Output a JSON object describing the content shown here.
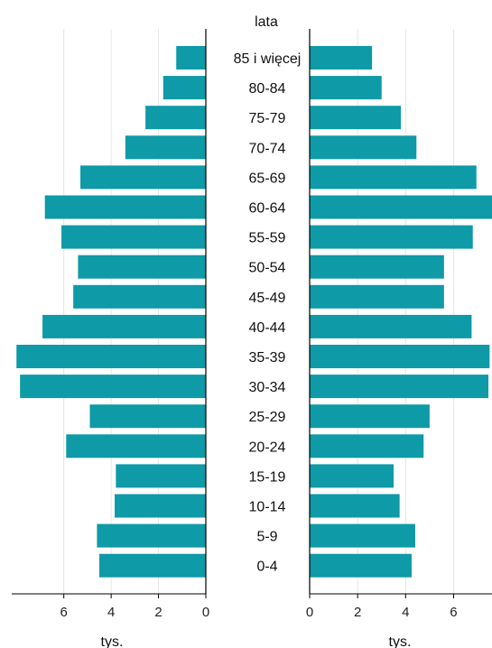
{
  "chart_data": {
    "type": "bar",
    "orientation": "horizontal",
    "layout": "population-pyramid",
    "y_axis_title": "lata",
    "categories": [
      "85 i więcej",
      "80-84",
      "75-79",
      "70-74",
      "65-69",
      "60-64",
      "55-59",
      "50-54",
      "45-49",
      "40-44",
      "35-39",
      "30-34",
      "25-29",
      "20-24",
      "15-19",
      "10-14",
      "5-9",
      "0-4"
    ],
    "colors": {
      "bar": "#0e9aa7",
      "grid": "#e6e6e6",
      "axis": "#000000",
      "text": "#111111"
    },
    "panels": [
      {
        "side": "left",
        "xlabel": "tys.",
        "xlim": [
          0,
          8.2
        ],
        "xticks": [
          6,
          4,
          2,
          0
        ],
        "direction": "reversed",
        "values": [
          1.25,
          1.8,
          2.55,
          3.4,
          5.3,
          6.8,
          6.1,
          5.4,
          5.6,
          6.9,
          8.0,
          7.85,
          4.9,
          5.9,
          3.8,
          3.85,
          4.6,
          4.5
        ]
      },
      {
        "side": "right",
        "xlabel": "tys.",
        "xlim": [
          0,
          7.6
        ],
        "xticks": [
          0,
          2,
          4,
          6
        ],
        "direction": "normal",
        "values": [
          2.6,
          3.0,
          3.8,
          4.45,
          6.95,
          7.6,
          6.8,
          5.6,
          5.6,
          6.75,
          7.5,
          7.45,
          5.0,
          4.75,
          3.5,
          3.75,
          4.4,
          4.25
        ]
      }
    ],
    "grid": true
  }
}
